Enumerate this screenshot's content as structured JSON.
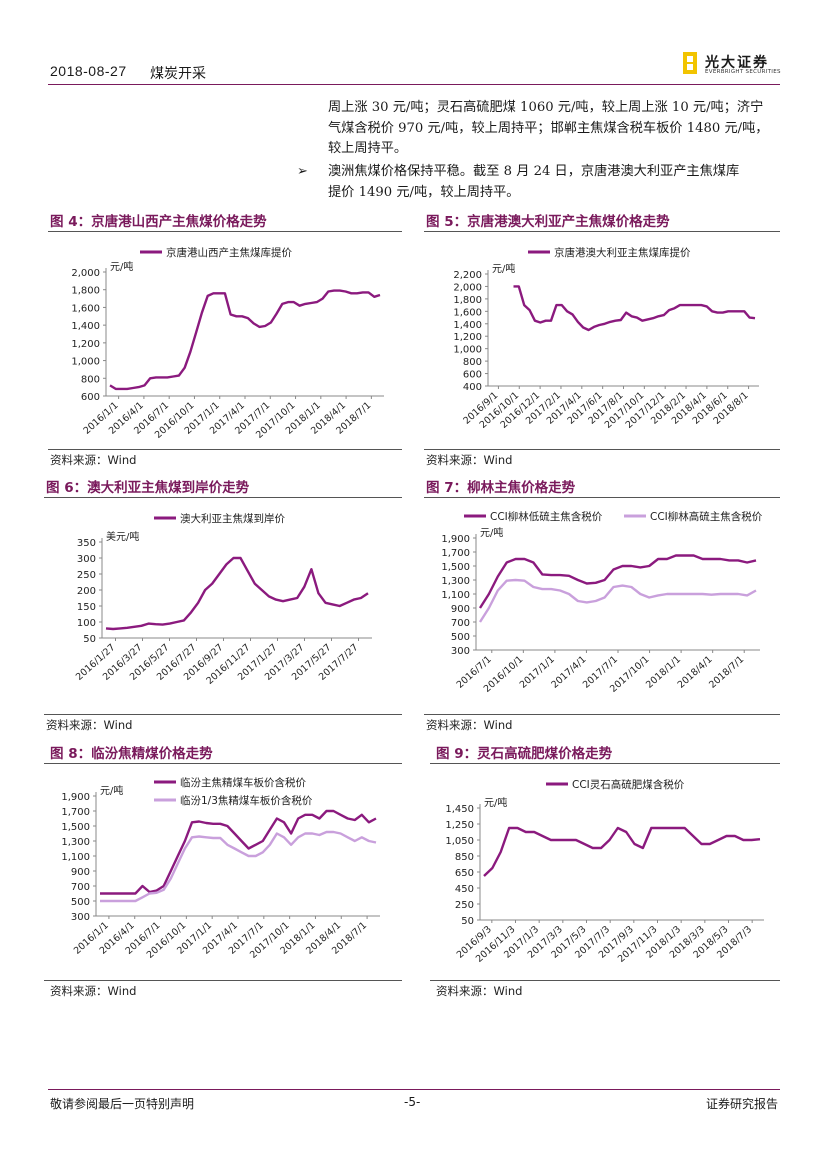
{
  "header": {
    "date": "2018-08-27",
    "category": "煤炭开采",
    "logo_cn": "光大证券",
    "logo_en": "EVERBRIGHT SECURITIES"
  },
  "body": {
    "para1_lines": [
      "周上涨 30 元/吨；灵石高硫肥煤 1060 元/吨，较上周上涨 10 元/吨；济宁",
      "气煤含税价 970 元/吨，较上周持平；邯郸主焦煤含税车板价 1480 元/吨，",
      "较上周持平。"
    ],
    "bullet_symbol": "➢",
    "para2_lines": [
      "澳洲焦煤价格保持平稳。截至 8 月 24 日，京唐港澳大利亚产主焦煤库",
      "提价 1490 元/吨，较上周持平。"
    ]
  },
  "source_text": "资料来源：Wind",
  "footer": {
    "left": "敬请参阅最后一页特别声明",
    "center": "-5-",
    "right": "证券研究报告"
  },
  "chart_data": [
    {
      "id": "fig4",
      "title": "图 4：京唐港山西产主焦煤价格走势",
      "type": "line",
      "ylabel": "元/吨",
      "ylim": [
        600,
        2000
      ],
      "yticks": [
        "2,000",
        "1,800",
        "1,600",
        "1,400",
        "1,200",
        "1,000",
        "800",
        "600"
      ],
      "xticks": [
        "2016/1/1",
        "2016/4/1",
        "2016/7/1",
        "2016/10/1",
        "2017/1/1",
        "2017/4/1",
        "2017/7/1",
        "2017/10/1",
        "2018/1/1",
        "2018/4/1",
        "2018/7/1"
      ],
      "series": [
        {
          "name": "京唐港山西产主焦煤库提价",
          "color": "#8b1a7e",
          "values": [
            720,
            680,
            680,
            680,
            690,
            700,
            720,
            800,
            810,
            810,
            810,
            820,
            830,
            920,
            1100,
            1320,
            1540,
            1730,
            1760,
            1760,
            1760,
            1520,
            1500,
            1500,
            1480,
            1420,
            1380,
            1390,
            1430,
            1530,
            1640,
            1660,
            1660,
            1620,
            1640,
            1650,
            1660,
            1700,
            1780,
            1790,
            1790,
            1780,
            1760,
            1760,
            1770,
            1770,
            1720,
            1740
          ]
        }
      ]
    },
    {
      "id": "fig5",
      "title": "图 5：京唐港澳大利亚产主焦煤价格走势",
      "type": "line",
      "ylabel": "元/吨",
      "ylim": [
        400,
        2200
      ],
      "yticks": [
        "2,200",
        "2,000",
        "1,800",
        "1,600",
        "1,400",
        "1,200",
        "1,000",
        "800",
        "600",
        "400"
      ],
      "xticks": [
        "2016/9/1",
        "2016/10/1",
        "2016/12/1",
        "2017/2/1",
        "2017/4/1",
        "2017/6/1",
        "2017/8/1",
        "2017/10/1",
        "2017/12/1",
        "2018/2/1",
        "2018/4/1",
        "2018/6/1",
        "2018/8/1"
      ],
      "series": [
        {
          "name": "京唐港澳大利亚主焦煤库提价",
          "color": "#8b1a7e",
          "values": [
            null,
            null,
            null,
            null,
            2000,
            2000,
            1700,
            1620,
            1450,
            1420,
            1450,
            1450,
            1700,
            1700,
            1600,
            1550,
            1430,
            1340,
            1300,
            1350,
            1380,
            1400,
            1430,
            1450,
            1460,
            1580,
            1520,
            1500,
            1450,
            1470,
            1490,
            1520,
            1540,
            1620,
            1650,
            1700,
            1700,
            1700,
            1700,
            1700,
            1680,
            1600,
            1580,
            1580,
            1600,
            1600,
            1600,
            1600,
            1500,
            1490
          ]
        }
      ]
    },
    {
      "id": "fig6",
      "title": "图 6：澳大利亚主焦煤到岸价走势",
      "type": "line",
      "ylabel": "美元/吨",
      "ylim": [
        50,
        350
      ],
      "yticks": [
        "350",
        "300",
        "250",
        "200",
        "150",
        "100",
        "50"
      ],
      "xticks": [
        "2016/1/27",
        "2016/3/27",
        "2016/5/27",
        "2016/7/27",
        "2016/9/27",
        "2016/11/27",
        "2017/1/27",
        "2017/3/27",
        "2017/5/27",
        "2017/7/27"
      ],
      "series": [
        {
          "name": "澳大利亚主焦煤到岸价",
          "color": "#8b1a7e",
          "values": [
            80,
            78,
            80,
            82,
            85,
            88,
            95,
            93,
            92,
            95,
            100,
            105,
            130,
            160,
            200,
            220,
            250,
            280,
            300,
            300,
            260,
            220,
            200,
            180,
            170,
            165,
            170,
            175,
            210,
            265,
            190,
            160,
            155,
            150,
            160,
            170,
            175,
            190
          ]
        }
      ]
    },
    {
      "id": "fig7",
      "title": "图 7：柳林主焦价格走势",
      "type": "line",
      "ylabel": "元/吨",
      "ylim": [
        300,
        1900
      ],
      "yticks": [
        "1,900",
        "1,700",
        "1,500",
        "1,300",
        "1,100",
        "900",
        "700",
        "500",
        "300"
      ],
      "xticks": [
        "2016/7/1",
        "2016/10/1",
        "2017/1/1",
        "2017/4/1",
        "2017/7/1",
        "2017/10/1",
        "2018/1/1",
        "2018/4/1",
        "2018/7/1"
      ],
      "series": [
        {
          "name": "CCI柳林低硫主焦含税价",
          "color": "#8b1a7e",
          "values": [
            900,
            1100,
            1350,
            1550,
            1600,
            1600,
            1550,
            1380,
            1370,
            1370,
            1360,
            1300,
            1250,
            1260,
            1300,
            1450,
            1500,
            1500,
            1480,
            1500,
            1600,
            1600,
            1650,
            1650,
            1650,
            1600,
            1600,
            1600,
            1580,
            1580,
            1550,
            1580
          ]
        },
        {
          "name": "CCI柳林高硫主焦含税价",
          "color": "#c9a0dc",
          "values": [
            700,
            900,
            1150,
            1290,
            1300,
            1290,
            1200,
            1170,
            1170,
            1150,
            1100,
            1000,
            980,
            1000,
            1050,
            1200,
            1220,
            1200,
            1100,
            1050,
            1080,
            1100,
            1100,
            1100,
            1100,
            1100,
            1090,
            1100,
            1100,
            1100,
            1080,
            1150
          ]
        }
      ]
    },
    {
      "id": "fig8",
      "title": "图 8：临汾焦精煤价格走势",
      "type": "line",
      "ylabel": "元/吨",
      "ylim": [
        300,
        1900
      ],
      "yticks": [
        "1,900",
        "1,700",
        "1,500",
        "1,300",
        "1,100",
        "900",
        "700",
        "500",
        "300"
      ],
      "xticks": [
        "2016/1/1",
        "2016/4/1",
        "2016/7/1",
        "2016/10/1",
        "2017/1/1",
        "2017/4/1",
        "2017/7/1",
        "2017/10/1",
        "2018/1/1",
        "2018/4/1",
        "2018/7/1"
      ],
      "series": [
        {
          "name": "临汾主焦精煤车板价含税价",
          "color": "#8b1a7e",
          "values": [
            600,
            600,
            600,
            600,
            600,
            600,
            700,
            620,
            640,
            700,
            900,
            1100,
            1300,
            1550,
            1560,
            1540,
            1530,
            1530,
            1500,
            1400,
            1300,
            1200,
            1250,
            1300,
            1450,
            1600,
            1550,
            1400,
            1600,
            1650,
            1650,
            1600,
            1700,
            1700,
            1650,
            1600,
            1580,
            1650,
            1550,
            1600
          ]
        },
        {
          "name": "临汾1/3焦精煤车板价含税价",
          "color": "#c9a0dc",
          "values": [
            500,
            500,
            500,
            500,
            500,
            500,
            550,
            600,
            610,
            650,
            800,
            1000,
            1200,
            1350,
            1360,
            1350,
            1340,
            1340,
            1250,
            1200,
            1150,
            1100,
            1100,
            1150,
            1250,
            1400,
            1350,
            1250,
            1350,
            1400,
            1400,
            1380,
            1420,
            1420,
            1400,
            1350,
            1300,
            1350,
            1300,
            1280
          ]
        }
      ]
    },
    {
      "id": "fig9",
      "title": "图 9：灵石高硫肥煤价格走势",
      "type": "line",
      "ylabel": "元/吨",
      "ylim": [
        50,
        1450
      ],
      "yticks": [
        "1,450",
        "1,250",
        "1,050",
        "850",
        "650",
        "450",
        "250",
        "50"
      ],
      "xticks": [
        "2016/9/3",
        "2016/11/3",
        "2017/1/3",
        "2017/3/3",
        "2017/5/3",
        "2017/7/3",
        "2017/9/3",
        "2017/11/3",
        "2018/1/3",
        "2018/3/3",
        "2018/5/3",
        "2018/7/3"
      ],
      "series": [
        {
          "name": "CCI灵石高硫肥煤含税价",
          "color": "#8b1a7e",
          "values": [
            600,
            700,
            900,
            1200,
            1200,
            1150,
            1150,
            1100,
            1050,
            1050,
            1050,
            1050,
            1000,
            950,
            950,
            1050,
            1200,
            1150,
            1000,
            950,
            1200,
            1200,
            1200,
            1200,
            1200,
            1100,
            1000,
            1000,
            1050,
            1100,
            1100,
            1050,
            1050,
            1060
          ]
        }
      ]
    }
  ]
}
